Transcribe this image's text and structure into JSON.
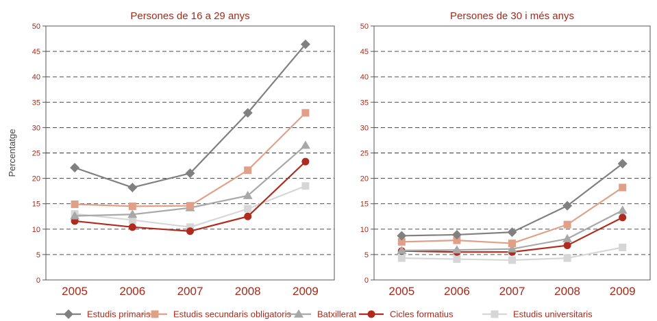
{
  "chart_data": {
    "type": "line",
    "ylabel": "Percentatge",
    "x": [
      "2005",
      "2006",
      "2007",
      "2008",
      "2009"
    ],
    "ylim": [
      0,
      50
    ],
    "yticks": [
      0,
      5,
      10,
      15,
      20,
      25,
      30,
      35,
      40,
      45,
      50
    ],
    "grid": true,
    "legend_position": "bottom",
    "series_styles": [
      {
        "name": "Estudis primaris",
        "color": "#808080",
        "marker": "diamond"
      },
      {
        "name": "Estudis secundaris obligatoris",
        "color": "#e0a088",
        "marker": "square"
      },
      {
        "name": "Batxillerat",
        "color": "#a8a8a8",
        "marker": "triangle"
      },
      {
        "name": "Cicles formatius",
        "color": "#b02a1f",
        "marker": "circle"
      },
      {
        "name": "Estudis universitaris",
        "color": "#d6d6d6",
        "marker": "square"
      }
    ],
    "panels": [
      {
        "title": "Persones de 16 a 29 anys",
        "series": [
          {
            "name": "Estudis primaris",
            "values": [
              22.1,
              18.2,
              21.0,
              32.9,
              46.4
            ]
          },
          {
            "name": "Estudis secundaris obligatoris",
            "values": [
              14.9,
              14.5,
              14.6,
              21.6,
              32.9
            ]
          },
          {
            "name": "Batxillerat",
            "values": [
              12.6,
              12.9,
              14.2,
              16.6,
              26.5
            ]
          },
          {
            "name": "Cicles formatius",
            "values": [
              11.6,
              10.4,
              9.6,
              12.5,
              23.3
            ]
          },
          {
            "name": "Estudis universitaris",
            "values": [
              13.0,
              11.8,
              10.4,
              14.0,
              18.5
            ]
          }
        ]
      },
      {
        "title": "Persones de 30 i més anys",
        "series": [
          {
            "name": "Estudis primaris",
            "values": [
              8.7,
              8.9,
              9.4,
              14.6,
              22.9
            ]
          },
          {
            "name": "Estudis secundaris obligatoris",
            "values": [
              7.5,
              7.8,
              7.2,
              10.9,
              18.2
            ]
          },
          {
            "name": "Batxillerat",
            "values": [
              5.8,
              5.9,
              6.1,
              8.1,
              13.7
            ]
          },
          {
            "name": "Cicles formatius",
            "values": [
              5.7,
              5.5,
              5.5,
              6.8,
              12.3
            ]
          },
          {
            "name": "Estudis universitaris",
            "values": [
              4.3,
              4.1,
              3.9,
              4.3,
              6.4
            ]
          }
        ]
      }
    ]
  }
}
